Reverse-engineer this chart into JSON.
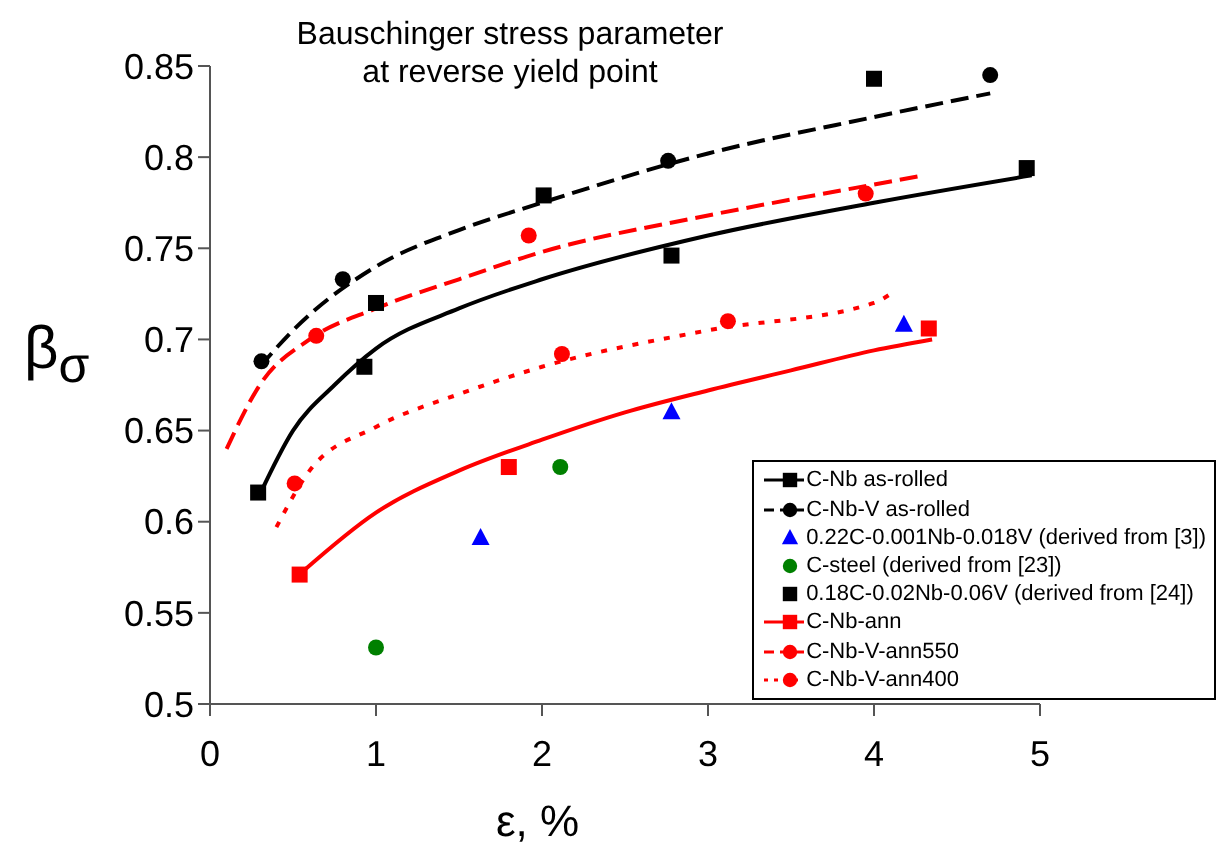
{
  "chart_data": {
    "type": "scatter",
    "title": "Bauschinger stress parameter\nat reverse yield point",
    "xlabel": "ε, %",
    "ylabel": "β$_{σ}$",
    "xlim": [
      0,
      5
    ],
    "xticks": [
      0,
      1,
      2,
      3,
      4,
      5
    ],
    "ylim": [
      0.5,
      0.85
    ],
    "yticks": [
      0.5,
      0.55,
      0.6,
      0.65,
      0.7,
      0.75,
      0.8,
      0.85
    ],
    "grid": false,
    "legend": "bottom right",
    "series": [
      {
        "name": "C-Nb as-rolled",
        "marker": "square",
        "color": "#000000",
        "x": [
          0.29,
          0.93,
          2.78,
          4.92
        ],
        "values": [
          0.616,
          0.685,
          0.746,
          0.794
        ]
      },
      {
        "type": "line",
        "line_style": "solid",
        "color": "#000000",
        "x": [
          0.3,
          0.5,
          0.75,
          1,
          1.5,
          2,
          3,
          4,
          4.95
        ],
        "values": [
          0.615,
          0.65,
          0.675,
          0.695,
          0.717,
          0.733,
          0.757,
          0.775,
          0.79
        ]
      },
      {
        "name": "C-Nb-V as-rolled",
        "marker": "circle",
        "color": "#000000",
        "x": [
          0.31,
          0.8,
          2.76,
          4.7
        ],
        "values": [
          0.688,
          0.733,
          0.798,
          0.845
        ]
      },
      {
        "type": "line",
        "line_style": "dashed",
        "color": "#000000",
        "x": [
          0.3,
          0.5,
          1,
          1.5,
          2,
          3,
          4,
          4.7
        ],
        "values": [
          0.685,
          0.705,
          0.74,
          0.76,
          0.775,
          0.802,
          0.822,
          0.835
        ]
      },
      {
        "name": "0.22C-0.001Nb-0.018V (derived from [3])",
        "marker": "triangle",
        "color": "#0000ff",
        "x": [
          1.63,
          2.78,
          4.18
        ],
        "values": [
          0.591,
          0.66,
          0.708
        ]
      },
      {
        "name": "C-steel (derived from [23])",
        "marker": "circle",
        "color": "#008000",
        "x": [
          1.0,
          2.11
        ],
        "values": [
          0.531,
          0.63
        ]
      },
      {
        "name": "0.18C-0.02Nb-0.06V (derived from [24])",
        "marker": "square",
        "color": "#000000",
        "x": [
          1.0,
          2.01,
          4.0
        ],
        "values": [
          0.72,
          0.779,
          0.843
        ]
      },
      {
        "name": "C-Nb-ann",
        "marker": "square",
        "color": "#ff0000",
        "x": [
          0.54,
          1.8,
          4.33
        ],
        "values": [
          0.571,
          0.63,
          0.706
        ]
      },
      {
        "type": "line",
        "line_style": "solid",
        "color": "#ff0000",
        "x": [
          0.55,
          1,
          1.5,
          2,
          2.5,
          3,
          3.5,
          4,
          4.35
        ],
        "values": [
          0.572,
          0.605,
          0.628,
          0.645,
          0.66,
          0.672,
          0.683,
          0.694,
          0.7
        ]
      },
      {
        "name": "C-Nb-V-ann550",
        "marker": "circle",
        "color": "#ff0000",
        "x": [
          0.64,
          1.92,
          3.95
        ],
        "values": [
          0.702,
          0.757,
          0.78
        ]
      },
      {
        "type": "line",
        "line_style": "dashed",
        "color": "#ff0000",
        "x": [
          0.1,
          0.3,
          0.6,
          1,
          1.5,
          2,
          3,
          4,
          4.3
        ],
        "values": [
          0.64,
          0.675,
          0.7,
          0.717,
          0.733,
          0.748,
          0.768,
          0.785,
          0.79
        ]
      },
      {
        "name": "C-Nb-V-ann400",
        "marker": "circle",
        "color": "#ff0000",
        "x": [
          0.51,
          2.12,
          3.12
        ],
        "values": [
          0.621,
          0.692,
          0.71
        ]
      },
      {
        "type": "line",
        "line_style": "dotted",
        "color": "#ff0000",
        "x": [
          0.4,
          0.6,
          1,
          1.5,
          2,
          3,
          4,
          4.1
        ],
        "values": [
          0.597,
          0.628,
          0.652,
          0.67,
          0.685,
          0.705,
          0.72,
          0.725
        ]
      }
    ]
  }
}
